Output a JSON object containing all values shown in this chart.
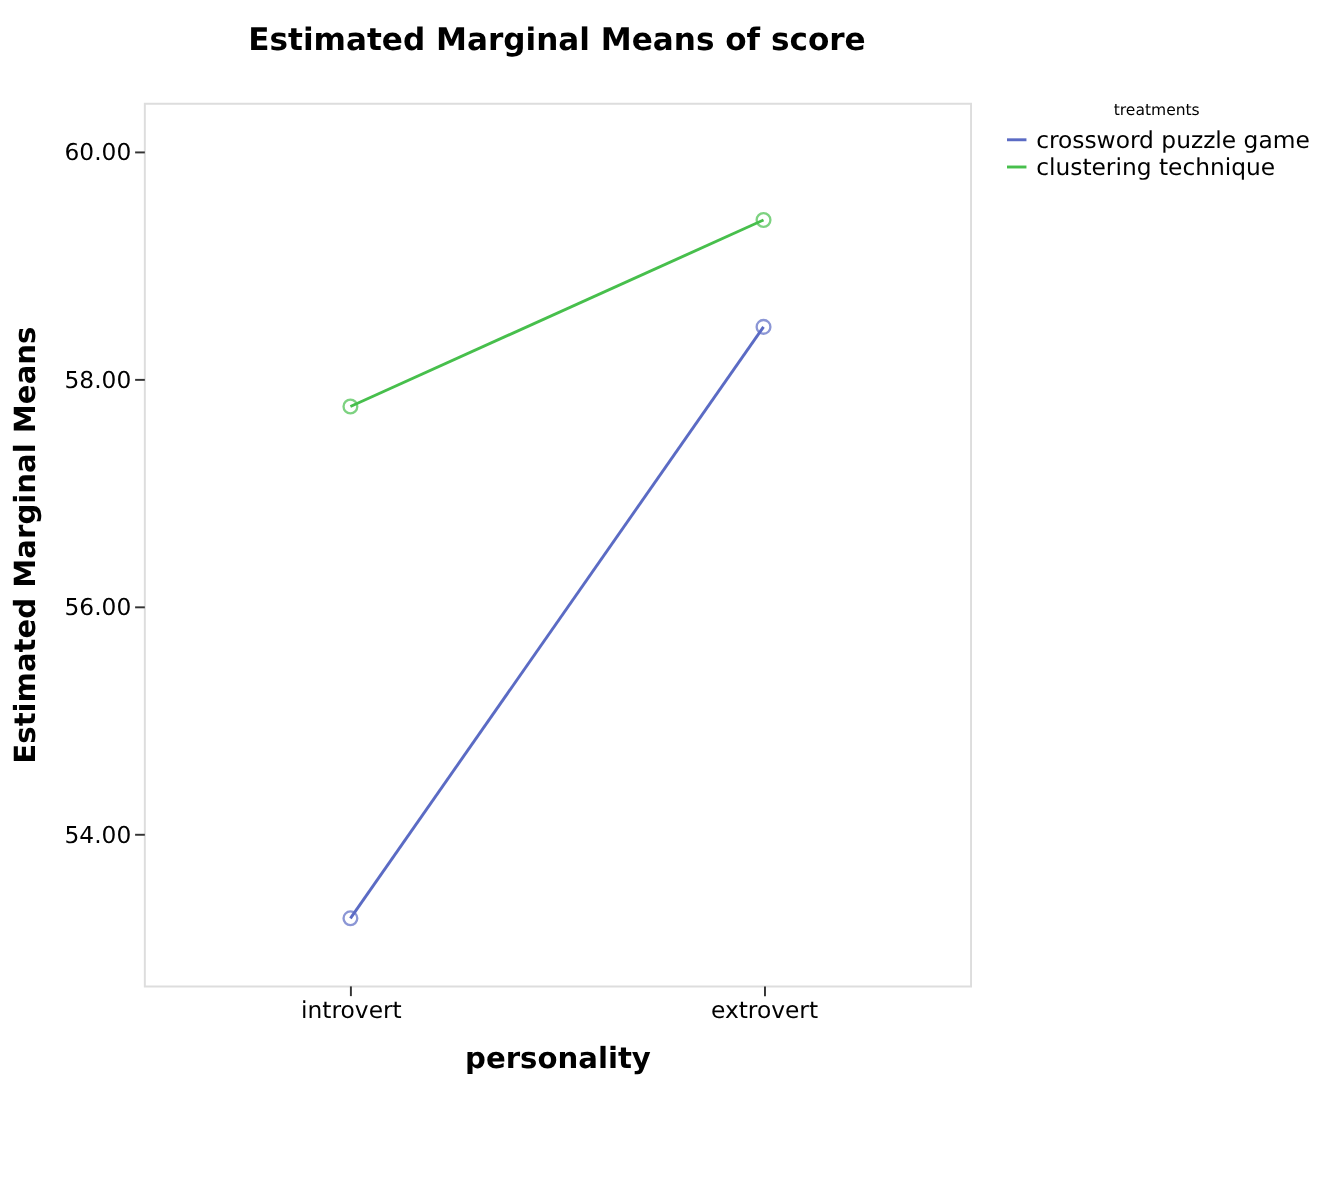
{
  "chart_data": {
    "type": "line",
    "title": "Estimated Marginal Means of score",
    "xlabel": "personality",
    "ylabel": "Estimated Marginal Means",
    "legend_title": "treatments",
    "categories": [
      "introvert",
      "extrovert"
    ],
    "series": [
      {
        "name": "crossword puzzle game",
        "color": "#5b6bc4",
        "values": [
          53.26,
          58.46
        ]
      },
      {
        "name": "clustering technique",
        "color": "#47bf4c",
        "values": [
          57.76,
          59.4
        ]
      }
    ],
    "ylim": [
      52.67,
      60.43
    ],
    "yticks": [
      {
        "value": 54,
        "label": "54.00"
      },
      {
        "value": 56,
        "label": "56.00"
      },
      {
        "value": 58,
        "label": "58.00"
      },
      {
        "value": 60,
        "label": "60.00"
      }
    ],
    "grid": false,
    "legend": "top right",
    "marker": "circle",
    "line_style": "solid"
  }
}
